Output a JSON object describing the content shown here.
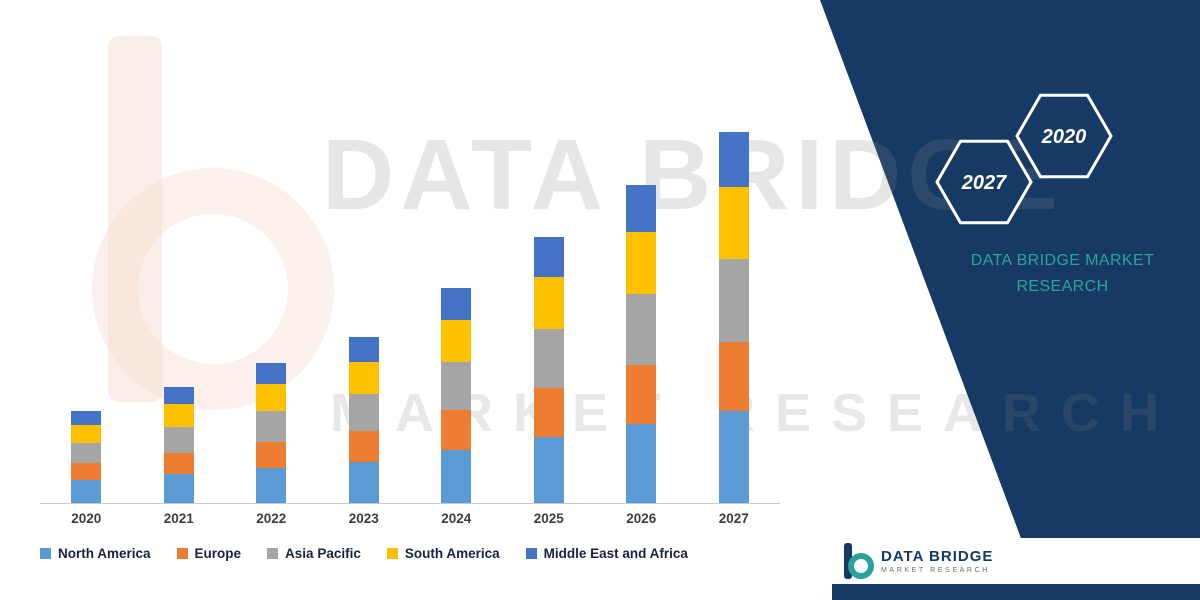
{
  "watermark": {
    "line1": "DATA BRIDGE",
    "line2": "MARKET RESEARCH"
  },
  "side_panel": {
    "background_color": "#173A64",
    "hexagons": [
      {
        "label": "2027"
      },
      {
        "label": "2020"
      }
    ],
    "title_line1": "DATA BRIDGE MARKET",
    "title_line2": "RESEARCH",
    "title_color": "#2BA29C"
  },
  "footer_logo": {
    "name": "DATA BRIDGE",
    "tagline": "MARKET RESEARCH"
  },
  "chart_data": {
    "type": "bar",
    "stacked": true,
    "title": "",
    "xlabel": "",
    "ylabel": "",
    "y_axis_visible": false,
    "grid": false,
    "legend_position": "bottom",
    "categories": [
      "2020",
      "2021",
      "2022",
      "2023",
      "2024",
      "2025",
      "2026",
      "2027"
    ],
    "series": [
      {
        "name": "North America",
        "color": "#5B9BD5",
        "values": [
          2.3,
          2.9,
          3.5,
          4.1,
          5.3,
          6.6,
          7.9,
          9.2
        ]
      },
      {
        "name": "Europe",
        "color": "#ED7D31",
        "values": [
          1.7,
          2.1,
          2.6,
          3.1,
          4.0,
          4.9,
          5.9,
          6.9
        ]
      },
      {
        "name": "Asia Pacific",
        "color": "#A5A5A5",
        "values": [
          2.0,
          2.6,
          3.1,
          3.7,
          4.8,
          5.9,
          7.1,
          8.3
        ]
      },
      {
        "name": "South America",
        "color": "#FFC000",
        "values": [
          1.8,
          2.3,
          2.7,
          3.2,
          4.2,
          5.2,
          6.2,
          7.2
        ]
      },
      {
        "name": "Middle East and Africa",
        "color": "#4472C4",
        "values": [
          1.4,
          1.7,
          2.1,
          2.5,
          3.2,
          4.0,
          4.7,
          5.5
        ]
      }
    ]
  }
}
